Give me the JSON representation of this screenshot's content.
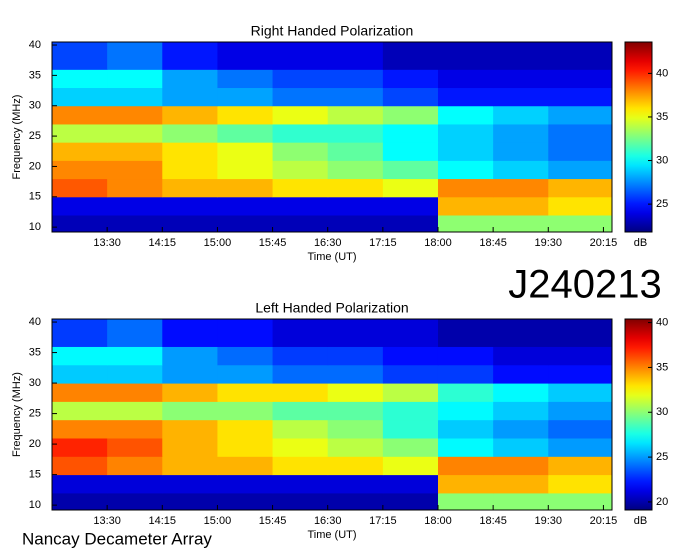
{
  "chart_data": [
    {
      "type": "spectrogram",
      "title": "Right Handed Polarization",
      "x_label": "Time (UT)",
      "y_label": "Frequency (MHz)",
      "colormap": "jet",
      "xlim": [
        765,
        1222
      ],
      "ylim": [
        9.2,
        40.5
      ],
      "xticks": [
        {
          "value": 810,
          "label": "13:30"
        },
        {
          "value": 855,
          "label": "14:15"
        },
        {
          "value": 900,
          "label": "15:00"
        },
        {
          "value": 945,
          "label": "15:45"
        },
        {
          "value": 990,
          "label": "16:30"
        },
        {
          "value": 1035,
          "label": "17:15"
        },
        {
          "value": 1080,
          "label": "18:00"
        },
        {
          "value": 1125,
          "label": "18:45"
        },
        {
          "value": 1170,
          "label": "19:30"
        },
        {
          "value": 1215,
          "label": "20:15"
        }
      ],
      "yticks": [
        10,
        15,
        20,
        25,
        30,
        35,
        40
      ],
      "x": [
        765,
        810,
        855,
        900,
        945,
        990,
        1035,
        1080,
        1125,
        1170,
        1222
      ],
      "y": [
        9.2,
        12,
        15,
        18,
        21,
        24,
        27,
        30,
        33,
        36,
        40.5
      ],
      "z": [
        [
          23,
          23,
          23,
          23,
          23,
          23,
          23,
          33,
          33,
          33
        ],
        [
          24,
          24,
          24,
          24,
          24,
          24,
          24,
          37,
          37,
          36
        ],
        [
          39,
          38,
          37,
          37,
          36,
          36,
          35,
          38,
          38,
          37
        ],
        [
          38,
          38,
          36,
          35,
          34,
          33,
          32,
          30,
          29,
          28
        ],
        [
          37,
          37,
          36,
          35,
          33,
          32,
          30,
          29,
          28,
          27
        ],
        [
          34,
          34,
          33,
          32,
          31,
          31,
          30,
          29,
          28,
          27
        ],
        [
          38,
          38,
          37,
          36,
          35,
          34,
          33,
          30,
          29,
          28
        ],
        [
          29,
          29,
          28,
          28,
          27,
          27,
          26,
          25,
          25,
          25
        ],
        [
          30,
          30,
          28,
          27,
          26,
          26,
          25,
          24,
          24,
          24
        ],
        [
          26,
          27,
          25,
          24,
          24,
          24,
          23,
          23,
          23,
          23
        ]
      ],
      "colorbar": {
        "label": "dB",
        "lim": [
          21.8,
          43.6
        ],
        "ticks": [
          25,
          30,
          35,
          40
        ]
      }
    },
    {
      "type": "spectrogram",
      "title": "Left Handed Polarization",
      "x_label": "Time (UT)",
      "y_label": "Frequency (MHz)",
      "colormap": "jet",
      "xlim": [
        765,
        1222
      ],
      "ylim": [
        9.2,
        40.5
      ],
      "xticks": [
        {
          "value": 810,
          "label": "13:30"
        },
        {
          "value": 855,
          "label": "14:15"
        },
        {
          "value": 900,
          "label": "15:00"
        },
        {
          "value": 945,
          "label": "15:45"
        },
        {
          "value": 990,
          "label": "16:30"
        },
        {
          "value": 1035,
          "label": "17:15"
        },
        {
          "value": 1080,
          "label": "18:00"
        },
        {
          "value": 1125,
          "label": "18:45"
        },
        {
          "value": 1170,
          "label": "19:30"
        },
        {
          "value": 1215,
          "label": "20:15"
        }
      ],
      "yticks": [
        10,
        15,
        20,
        25,
        30,
        35,
        40
      ],
      "x": [
        765,
        810,
        855,
        900,
        945,
        990,
        1035,
        1080,
        1125,
        1170,
        1222
      ],
      "y": [
        9.2,
        12,
        15,
        18,
        21,
        24,
        27,
        30,
        33,
        36,
        40.5
      ],
      "z": [
        [
          20,
          20,
          20,
          20,
          20,
          20,
          20,
          30,
          30,
          30
        ],
        [
          21,
          21,
          21,
          21,
          21,
          21,
          21,
          34,
          34,
          33
        ],
        [
          36,
          35,
          34,
          34,
          33,
          33,
          32,
          35,
          35,
          34
        ],
        [
          37,
          36,
          34,
          33,
          32,
          31,
          30,
          27,
          26,
          25
        ],
        [
          35,
          35,
          34,
          33,
          31,
          30,
          28,
          26,
          25,
          24
        ],
        [
          31,
          31,
          30,
          30,
          29,
          29,
          28,
          27,
          26,
          25
        ],
        [
          35,
          35,
          34,
          33,
          33,
          32,
          31,
          28,
          27,
          26
        ],
        [
          26,
          26,
          25,
          25,
          24,
          24,
          23,
          23,
          22,
          22
        ],
        [
          27,
          27,
          25,
          24,
          23,
          23,
          22,
          22,
          21,
          21
        ],
        [
          23,
          24,
          22,
          22,
          21,
          21,
          21,
          20,
          20,
          20
        ]
      ],
      "colorbar": {
        "label": "dB",
        "lim": [
          19.1,
          40.4
        ],
        "ticks": [
          20,
          25,
          30,
          35,
          40
        ]
      }
    }
  ],
  "event_id": "J240213",
  "credit": "Nancay Decameter Array"
}
